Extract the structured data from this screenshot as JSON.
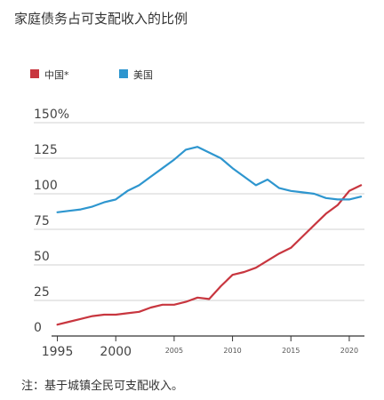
{
  "chart_data": {
    "type": "line",
    "title": "家庭债务占可支配收入的比例",
    "note": "注：基于城镇全民可支配收入。",
    "ylim": [
      0,
      150
    ],
    "xlim": [
      1994.5,
      2021.3
    ],
    "y_ticks": [
      {
        "value": 0,
        "label": "0"
      },
      {
        "value": 25,
        "label": "25"
      },
      {
        "value": 50,
        "label": "50"
      },
      {
        "value": 75,
        "label": "75"
      },
      {
        "value": 100,
        "label": "100"
      },
      {
        "value": 125,
        "label": "125"
      },
      {
        "value": 150,
        "label": "150%"
      }
    ],
    "x_ticks": [
      {
        "value": 1995,
        "label": "1995",
        "size": "major"
      },
      {
        "value": 2000,
        "label": "2000",
        "size": "major"
      },
      {
        "value": 2005,
        "label": "2005",
        "size": "minor"
      },
      {
        "value": 2010,
        "label": "2010",
        "size": "minor"
      },
      {
        "value": 2015,
        "label": "2015",
        "size": "minor"
      },
      {
        "value": 2020,
        "label": "2020",
        "size": "minor"
      }
    ],
    "grid": true,
    "legend": "top-left",
    "series": [
      {
        "name": "中国*",
        "color": "#c8363f",
        "x": [
          1995,
          1996,
          1997,
          1998,
          1999,
          2000,
          2001,
          2002,
          2003,
          2004,
          2005,
          2006,
          2007,
          2008,
          2009,
          2010,
          2011,
          2012,
          2013,
          2014,
          2015,
          2016,
          2017,
          2018,
          2019,
          2020,
          2021
        ],
        "values": [
          8,
          10,
          12,
          14,
          15,
          15,
          16,
          17,
          20,
          22,
          22,
          24,
          27,
          26,
          35,
          43,
          45,
          48,
          53,
          58,
          62,
          70,
          78,
          86,
          92,
          102,
          106
        ]
      },
      {
        "name": "美国",
        "color": "#2e96cf",
        "x": [
          1995,
          1996,
          1997,
          1998,
          1999,
          2000,
          2001,
          2002,
          2003,
          2004,
          2005,
          2006,
          2007,
          2008,
          2009,
          2010,
          2011,
          2012,
          2013,
          2014,
          2015,
          2016,
          2017,
          2018,
          2019,
          2020,
          2021
        ],
        "values": [
          87,
          88,
          89,
          91,
          94,
          96,
          102,
          106,
          112,
          118,
          124,
          131,
          133,
          129,
          125,
          118,
          112,
          106,
          110,
          104,
          102,
          101,
          100,
          97,
          96,
          96,
          98
        ]
      }
    ]
  }
}
